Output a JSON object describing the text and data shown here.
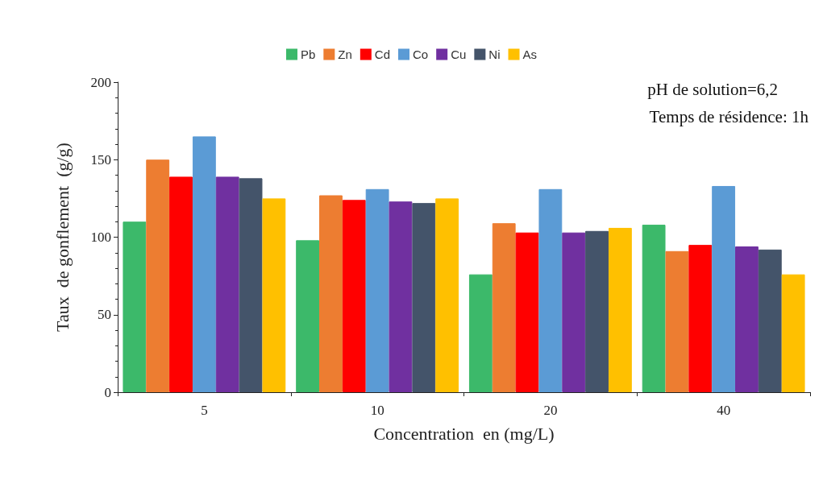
{
  "chart_data": {
    "type": "bar",
    "xlabel": "Concentration  en (mg/L)",
    "ylabel": "Taux  de gonflement  (g/g)",
    "categories": [
      "5",
      "10",
      "20",
      "40"
    ],
    "series": [
      {
        "name": "Pb",
        "color": "#3cb96a",
        "values": [
          110,
          98,
          76,
          108
        ]
      },
      {
        "name": "Zn",
        "color": "#ed7d31",
        "values": [
          150,
          127,
          109,
          91
        ]
      },
      {
        "name": "Cd",
        "color": "#ff0000",
        "values": [
          139,
          124,
          103,
          95
        ]
      },
      {
        "name": "Co",
        "color": "#5b9bd5",
        "values": [
          165,
          131,
          131,
          133
        ]
      },
      {
        "name": "Cu",
        "color": "#7030a0",
        "values": [
          139,
          123,
          103,
          94
        ]
      },
      {
        "name": "Ni",
        "color": "#44546a",
        "values": [
          138,
          122,
          104,
          92
        ]
      },
      {
        "name": "As",
        "color": "#ffc000",
        "values": [
          125,
          125,
          106,
          76
        ]
      }
    ],
    "ylim": [
      0,
      200
    ],
    "yticks": [
      0,
      50,
      100,
      150,
      200
    ],
    "grid": false,
    "legend": "top",
    "annotations": [
      "pH de solution=6,2",
      "Temps de résidence: 1h"
    ]
  }
}
